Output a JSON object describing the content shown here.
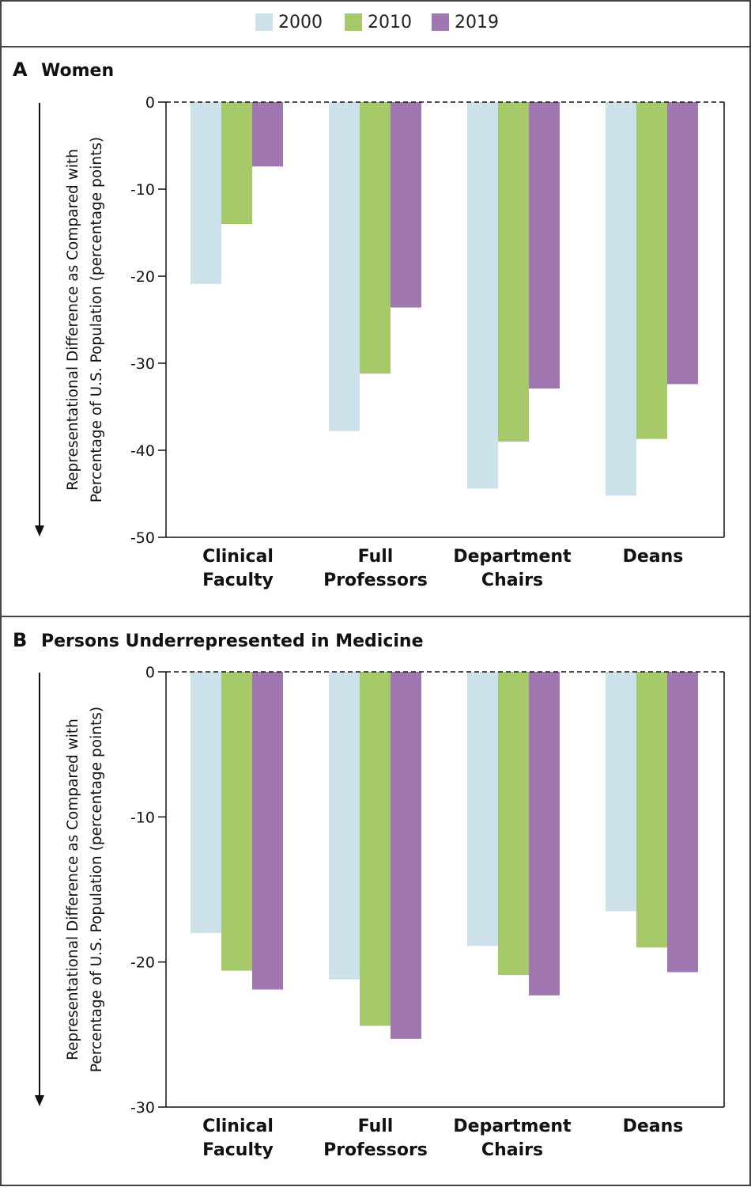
{
  "legend": [
    {
      "label": "2000",
      "color": "#cde1ea"
    },
    {
      "label": "2010",
      "color": "#a6ca6a"
    },
    {
      "label": "2019",
      "color": "#a077b1"
    }
  ],
  "chart_data": [
    {
      "type": "bar",
      "panel_letter": "A",
      "title": "Women",
      "ylabel_lines": [
        "Representational Difference as Compared with",
        "Percentage of U.S. Population (percentage points)"
      ],
      "ylim": [
        -50,
        0
      ],
      "yticks": [
        "0",
        "-10",
        "-20",
        "-30",
        "-40",
        "-50"
      ],
      "categories": [
        [
          "Clinical",
          "Faculty"
        ],
        [
          "Full",
          "Professors"
        ],
        [
          "Department",
          "Chairs"
        ],
        [
          "Deans"
        ]
      ],
      "series": [
        {
          "name": "2000",
          "values": [
            -20.9,
            -37.8,
            -44.4,
            -45.2
          ]
        },
        {
          "name": "2010",
          "values": [
            -14.0,
            -31.2,
            -39.0,
            -38.7
          ]
        },
        {
          "name": "2019",
          "values": [
            -7.4,
            -23.6,
            -32.9,
            -32.4
          ]
        }
      ]
    },
    {
      "type": "bar",
      "panel_letter": "B",
      "title": "Persons Underrepresented in Medicine",
      "ylabel_lines": [
        "Representational Difference as Compared with",
        "Percentage of U.S. Population (percentage points)"
      ],
      "ylim": [
        -30,
        0
      ],
      "yticks": [
        "0",
        "-10",
        "-20",
        "-30"
      ],
      "categories": [
        [
          "Clinical",
          "Faculty"
        ],
        [
          "Full",
          "Professors"
        ],
        [
          "Department",
          "Chairs"
        ],
        [
          "Deans"
        ]
      ],
      "series": [
        {
          "name": "2000",
          "values": [
            -18.0,
            -21.2,
            -18.9,
            -16.5
          ]
        },
        {
          "name": "2010",
          "values": [
            -20.6,
            -24.4,
            -20.9,
            -19.0
          ]
        },
        {
          "name": "2019",
          "values": [
            -21.9,
            -25.3,
            -22.3,
            -20.7
          ]
        }
      ]
    }
  ]
}
